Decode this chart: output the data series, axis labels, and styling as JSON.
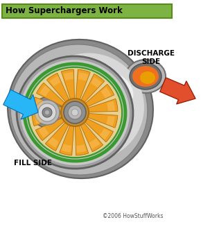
{
  "title": "How Superchargers Work",
  "title_bg": "#7cb342",
  "title_border": "#5a8a1a",
  "title_color": "black",
  "title_fontsize": 8.5,
  "discharge_label": "DISCHARGE\nSIDE",
  "fill_label": "FILL SIDE",
  "copyright": "©2006 HowStuffWorks",
  "bg_color": "white",
  "arrow_fill_color": "#29b6f6",
  "arrow_discharge_outer": "#e53935",
  "arrow_discharge_inner": "#ff8c00",
  "body_silver_dark": "#8a8a8a",
  "body_silver_mid": "#b8b8b8",
  "body_silver_light": "#d8d8d8",
  "body_silver_bright": "#eeeeee",
  "rotor_orange": "#f0a020",
  "rotor_dark": "#b07010",
  "rotor_light": "#f8c060",
  "green_outline": "#3a9a30",
  "discharge_glow_inner": "#e8a000",
  "discharge_glow_outer": "#f07020"
}
